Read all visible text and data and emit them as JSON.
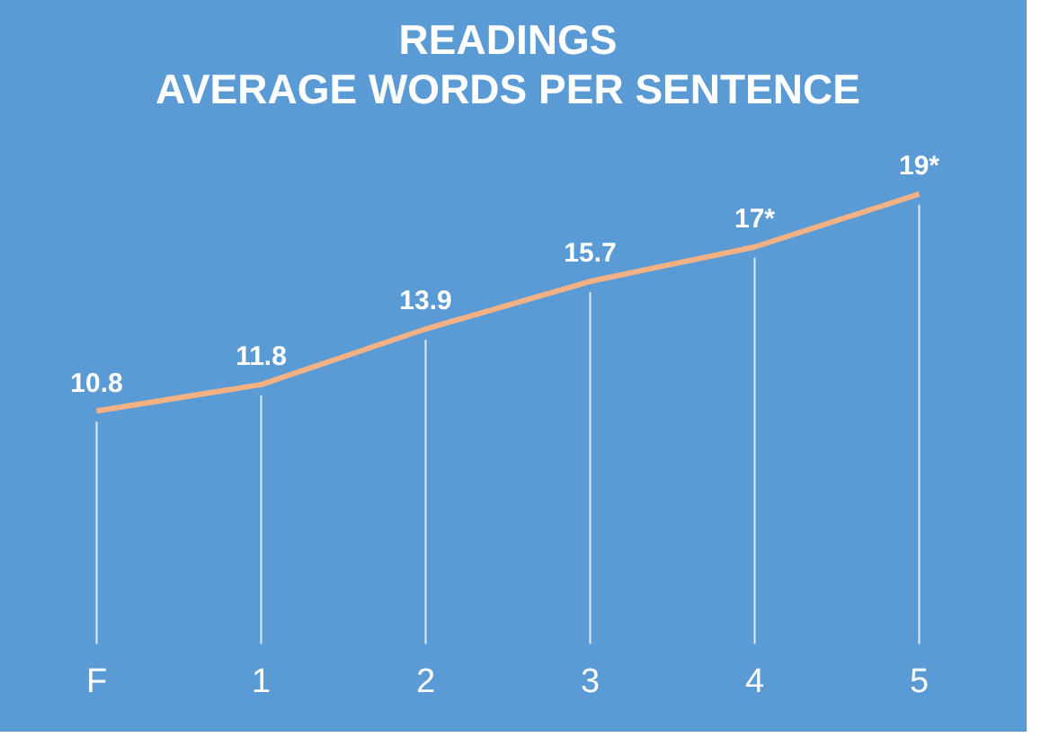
{
  "chart_data": {
    "type": "line",
    "title": [
      "READINGS",
      "AVERAGE WORDS PER SENTENCE"
    ],
    "categories": [
      "F",
      "1",
      "2",
      "3",
      "4",
      "5"
    ],
    "values": [
      10.8,
      11.8,
      13.9,
      15.7,
      17,
      19
    ],
    "value_labels": [
      "10.8",
      "11.8",
      "13.9",
      "15.7",
      "17*",
      "19*"
    ],
    "color": "#f4b183",
    "tick_labels": "x",
    "grid": "x",
    "legend": false,
    "line_style": "solid"
  }
}
